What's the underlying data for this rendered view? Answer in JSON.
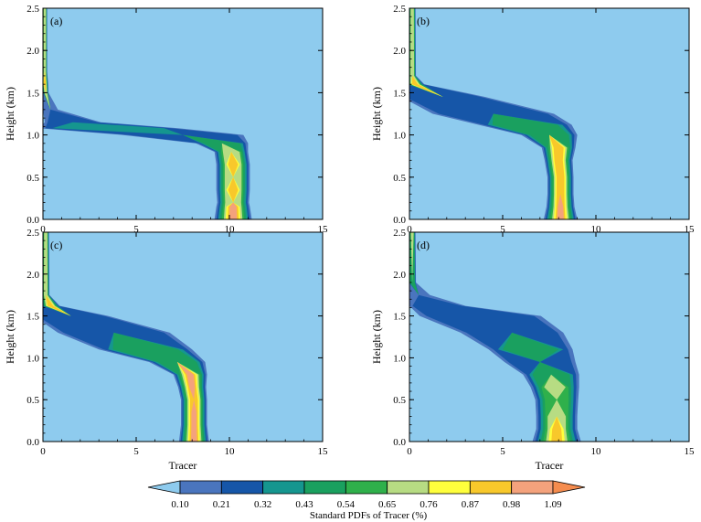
{
  "chart_data": [
    {
      "type": "heatmap",
      "panel_label": "(a)",
      "xlabel": "",
      "ylabel": "Height (km)",
      "xlim": [
        0,
        15
      ],
      "ylim": [
        0,
        2.5
      ],
      "x_ticks": [
        "0",
        "5",
        "10",
        "15"
      ],
      "y_ticks": [
        "0.0",
        "0.5",
        "1.0",
        "1.5",
        "2.0",
        "2.5"
      ],
      "profile": [
        {
          "h": 0.0,
          "c": 10.2,
          "w": 2.0,
          "l": 9
        },
        {
          "h": 0.15,
          "c": 10.2,
          "w": 1.8,
          "l": 9
        },
        {
          "h": 0.2,
          "c": 10.2,
          "w": 1.7,
          "l": 6
        },
        {
          "h": 0.35,
          "c": 10.2,
          "w": 1.8,
          "l": 8
        },
        {
          "h": 0.5,
          "c": 10.2,
          "w": 1.8,
          "l": 6
        },
        {
          "h": 0.65,
          "c": 10.2,
          "w": 1.8,
          "l": 8
        },
        {
          "h": 0.8,
          "c": 10.1,
          "w": 1.8,
          "l": 6
        },
        {
          "h": 0.9,
          "c": 9.6,
          "w": 2.8,
          "l": 4
        },
        {
          "h": 1.0,
          "c": 7.5,
          "w": 6.5,
          "l": 2
        },
        {
          "h": 1.08,
          "c": 3.5,
          "w": 7.5,
          "l": 3
        },
        {
          "h": 1.15,
          "c": 1.6,
          "w": 3.0,
          "l": 2
        },
        {
          "h": 1.3,
          "c": 0.4,
          "w": 0.8,
          "l": 1
        },
        {
          "h": 1.5,
          "c": 0.15,
          "w": 0.3,
          "l": 6
        },
        {
          "h": 1.62,
          "c": 0.1,
          "w": 0.35,
          "l": 8
        },
        {
          "h": 1.75,
          "c": 0.1,
          "w": 0.25,
          "l": 6
        },
        {
          "h": 2.5,
          "c": 0.1,
          "w": 0.25,
          "l": 6
        }
      ]
    },
    {
      "type": "heatmap",
      "panel_label": "(b)",
      "xlabel": "",
      "ylabel": "Height (km)",
      "xlim": [
        0,
        15
      ],
      "ylim": [
        0,
        2.5
      ],
      "x_ticks": [
        "0",
        "5",
        "10",
        "15"
      ],
      "y_ticks": [
        "0.0",
        "0.5",
        "1.0",
        "1.5",
        "2.0",
        "2.5"
      ],
      "profile": [
        {
          "h": 0.0,
          "c": 8.1,
          "w": 1.8,
          "l": 9
        },
        {
          "h": 0.15,
          "c": 8.1,
          "w": 1.5,
          "l": 9
        },
        {
          "h": 0.3,
          "c": 8.1,
          "w": 1.4,
          "l": 8
        },
        {
          "h": 0.5,
          "c": 8.1,
          "w": 1.4,
          "l": 8
        },
        {
          "h": 0.7,
          "c": 8.0,
          "w": 1.5,
          "l": 8
        },
        {
          "h": 0.85,
          "c": 8.0,
          "w": 1.8,
          "l": 8
        },
        {
          "h": 1.0,
          "c": 7.5,
          "w": 3.0,
          "l": 4
        },
        {
          "h": 1.12,
          "c": 6.2,
          "w": 5.0,
          "l": 4
        },
        {
          "h": 1.25,
          "c": 4.5,
          "w": 6.5,
          "l": 2
        },
        {
          "h": 1.45,
          "c": 1.8,
          "w": 4.5,
          "l": 2
        },
        {
          "h": 1.6,
          "c": 0.3,
          "w": 1.0,
          "l": 8
        },
        {
          "h": 1.7,
          "c": 0.15,
          "w": 0.4,
          "l": 6
        },
        {
          "h": 2.5,
          "c": 0.15,
          "w": 0.35,
          "l": 6
        }
      ]
    },
    {
      "type": "heatmap",
      "panel_label": "(c)",
      "xlabel": "Tracer",
      "ylabel": "Height (km)",
      "xlim": [
        0,
        15
      ],
      "ylim": [
        0,
        2.5
      ],
      "x_ticks": [
        "0",
        "5",
        "10",
        "15"
      ],
      "y_ticks": [
        "0.0",
        "0.5",
        "1.0",
        "1.5",
        "2.0",
        "2.5"
      ],
      "profile": [
        {
          "h": 0.0,
          "c": 8.1,
          "w": 1.6,
          "l": 9
        },
        {
          "h": 0.2,
          "c": 8.1,
          "w": 1.4,
          "l": 9
        },
        {
          "h": 0.35,
          "c": 8.1,
          "w": 1.4,
          "l": 9
        },
        {
          "h": 0.5,
          "c": 8.1,
          "w": 1.4,
          "l": 8
        },
        {
          "h": 0.65,
          "c": 8.0,
          "w": 1.5,
          "l": 9
        },
        {
          "h": 0.8,
          "c": 7.9,
          "w": 1.8,
          "l": 9
        },
        {
          "h": 0.95,
          "c": 7.2,
          "w": 3.0,
          "l": 4
        },
        {
          "h": 1.1,
          "c": 5.5,
          "w": 5.0,
          "l": 4
        },
        {
          "h": 1.3,
          "c": 3.8,
          "w": 6.0,
          "l": 2
        },
        {
          "h": 1.5,
          "c": 1.5,
          "w": 4.0,
          "l": 2
        },
        {
          "h": 1.62,
          "c": 0.4,
          "w": 1.0,
          "l": 8
        },
        {
          "h": 1.75,
          "c": 0.15,
          "w": 0.4,
          "l": 6
        },
        {
          "h": 2.5,
          "c": 0.15,
          "w": 0.35,
          "l": 6
        }
      ]
    },
    {
      "type": "heatmap",
      "panel_label": "(d)",
      "xlabel": "Tracer",
      "ylabel": "Height (km)",
      "xlim": [
        0,
        15
      ],
      "ylim": [
        0,
        2.5
      ],
      "x_ticks": [
        "0",
        "5",
        "10",
        "15"
      ],
      "y_ticks": [
        "0.0",
        "0.5",
        "1.0",
        "1.5",
        "2.0",
        "2.5"
      ],
      "profile": [
        {
          "h": 0.0,
          "c": 7.9,
          "w": 2.6,
          "l": 8
        },
        {
          "h": 0.15,
          "c": 7.9,
          "w": 2.2,
          "l": 8
        },
        {
          "h": 0.3,
          "c": 7.9,
          "w": 2.2,
          "l": 6
        },
        {
          "h": 0.5,
          "c": 7.9,
          "w": 2.3,
          "l": 5
        },
        {
          "h": 0.65,
          "c": 7.8,
          "w": 2.6,
          "l": 6
        },
        {
          "h": 0.8,
          "c": 7.6,
          "w": 3.0,
          "l": 4
        },
        {
          "h": 0.95,
          "c": 7.0,
          "w": 3.8,
          "l": 2
        },
        {
          "h": 1.1,
          "c": 6.5,
          "w": 4.5,
          "l": 4
        },
        {
          "h": 1.3,
          "c": 5.5,
          "w": 5.5,
          "l": 2
        },
        {
          "h": 1.5,
          "c": 3.8,
          "w": 6.5,
          "l": 2
        },
        {
          "h": 1.62,
          "c": 1.5,
          "w": 3.0,
          "l": 2
        },
        {
          "h": 1.75,
          "c": 0.5,
          "w": 1.2,
          "l": 1
        },
        {
          "h": 1.9,
          "c": 0.15,
          "w": 0.4,
          "l": 4
        },
        {
          "h": 2.5,
          "c": 0.15,
          "w": 0.35,
          "l": 6
        }
      ]
    }
  ],
  "colorbar": {
    "title": "Standard PDFs of Tracer (%)",
    "levels": [
      "0.10",
      "0.21",
      "0.32",
      "0.43",
      "0.54",
      "0.65",
      "0.76",
      "0.87",
      "0.98",
      "1.09"
    ],
    "colors": [
      "#8ecbee",
      "#4a75be",
      "#1656a8",
      "#15968f",
      "#1aa05f",
      "#2fb04b",
      "#b7dc83",
      "#ffff3c",
      "#f8c82b",
      "#f4a27c",
      "#f58c4e"
    ]
  },
  "colors": {
    "background": "#8ecbee",
    "core": "#f4a27c"
  }
}
